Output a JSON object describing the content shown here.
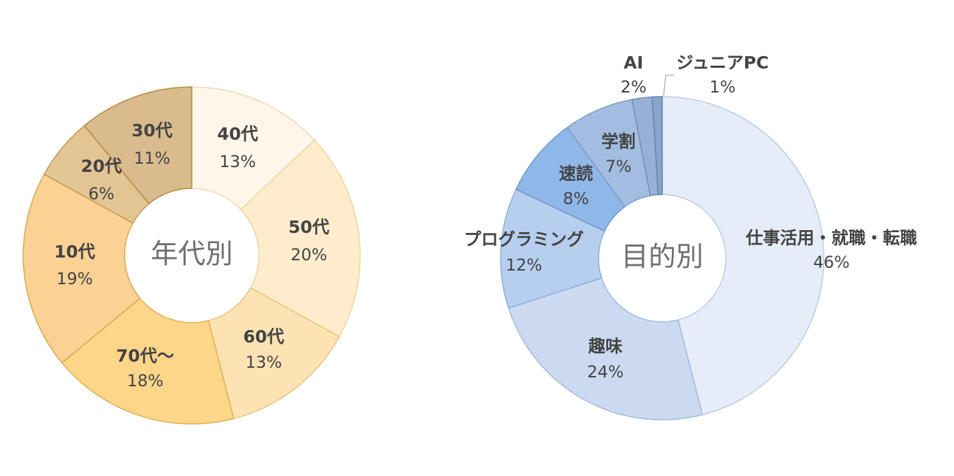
{
  "chart_data": [
    {
      "type": "pie",
      "donut": true,
      "title": "年代別",
      "start_angle_deg": 0,
      "direction": "clockwise",
      "slices": [
        {
          "label": "40代",
          "value_label": "13%",
          "value": 13,
          "color": "#fff6ea",
          "stroke": "#f0d9a8"
        },
        {
          "label": "50代",
          "value_label": "20%",
          "value": 20,
          "color": "#ffeccc",
          "stroke": "#efd49c"
        },
        {
          "label": "60代",
          "value_label": "13%",
          "value": 13,
          "color": "#fde2b4",
          "stroke": "#e9c47a"
        },
        {
          "label": "70代～",
          "value_label": "18%",
          "value": 18,
          "color": "#fdd68a",
          "stroke": "#dcb04a"
        },
        {
          "label": "10代",
          "value_label": "19%",
          "value": 19,
          "color": "#fbd294",
          "stroke": "#d6a64a"
        },
        {
          "label": "20代",
          "value_label": "6%",
          "value": 6,
          "color": "#e3c493",
          "stroke": "#c09a4e"
        },
        {
          "label": "30代",
          "value_label": "11%",
          "value": 11,
          "color": "#d9bb8e",
          "stroke": "#b08a3e"
        }
      ]
    },
    {
      "type": "pie",
      "donut": true,
      "title": "目的別",
      "start_angle_deg": 0,
      "direction": "clockwise",
      "slices": [
        {
          "label": "仕事活用・就職・転職",
          "value_label": "46%",
          "value": 46,
          "color": "#e6edf8",
          "stroke": "#b9cbe6"
        },
        {
          "label": "趣味",
          "value_label": "24%",
          "value": 24,
          "color": "#cbdaf0",
          "stroke": "#9fb9de"
        },
        {
          "label": "プログラミング",
          "value_label": "12%",
          "value": 12,
          "color": "#b7cfee",
          "stroke": "#8daed8"
        },
        {
          "label": "速読",
          "value_label": "8%",
          "value": 8,
          "color": "#8fb7e8",
          "stroke": "#6c96cc"
        },
        {
          "label": "学割",
          "value_label": "7%",
          "value": 7,
          "color": "#a3bde0",
          "stroke": "#7d9cc8"
        },
        {
          "label": "AI",
          "value_label": "2%",
          "value": 2,
          "color": "#97b0d6",
          "stroke": "#6f8dbb"
        },
        {
          "label": "ジュニアPC",
          "value_label": "1%",
          "value": 1,
          "color": "#8aa3c9",
          "stroke": "#6681ad"
        }
      ]
    }
  ]
}
